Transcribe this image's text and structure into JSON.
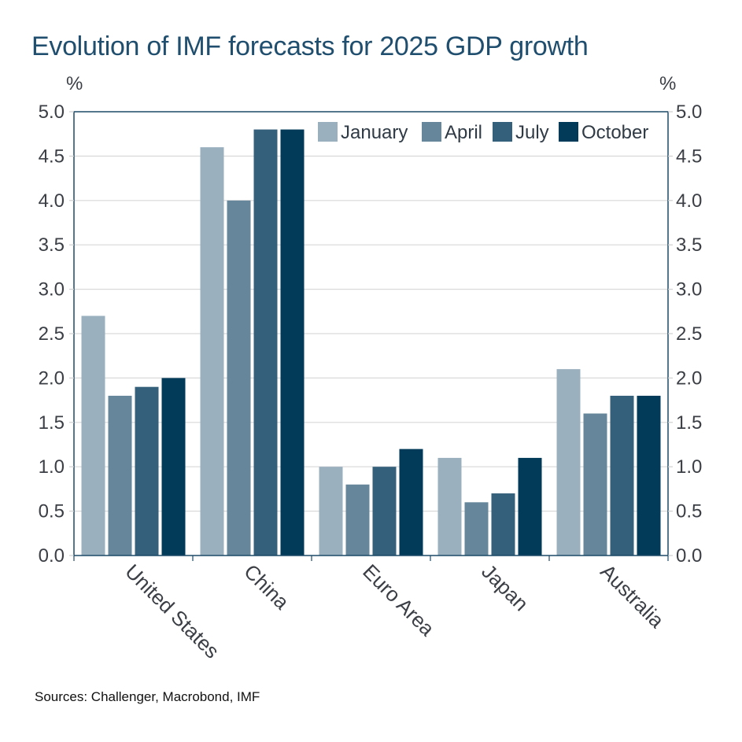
{
  "chart_data": {
    "type": "bar",
    "title": "Evolution of IMF forecasts for 2025 GDP growth",
    "ylabel_left": "%",
    "ylabel_right": "%",
    "xlabel": "",
    "ylim": [
      0,
      5
    ],
    "yticks": [
      "0.0",
      "0.5",
      "1.0",
      "1.5",
      "2.0",
      "2.5",
      "3.0",
      "3.5",
      "4.0",
      "4.5",
      "5.0"
    ],
    "grid": true,
    "legend_position": "top-right",
    "categories": [
      "United States",
      "China",
      "Euro Area",
      "Japan",
      "Australia"
    ],
    "series": [
      {
        "name": "January",
        "color": "#9bb0bf",
        "values": [
          2.7,
          4.6,
          1.0,
          1.1,
          2.1
        ]
      },
      {
        "name": "April",
        "color": "#66879b",
        "values": [
          1.8,
          4.0,
          0.8,
          0.6,
          1.6
        ]
      },
      {
        "name": "July",
        "color": "#35607b",
        "values": [
          1.9,
          4.8,
          1.0,
          0.7,
          1.8
        ]
      },
      {
        "name": "October",
        "color": "#023a5a",
        "values": [
          2.0,
          4.8,
          1.2,
          1.1,
          1.8
        ]
      }
    ],
    "source": "Sources: Challenger, Macrobond, IMF"
  }
}
